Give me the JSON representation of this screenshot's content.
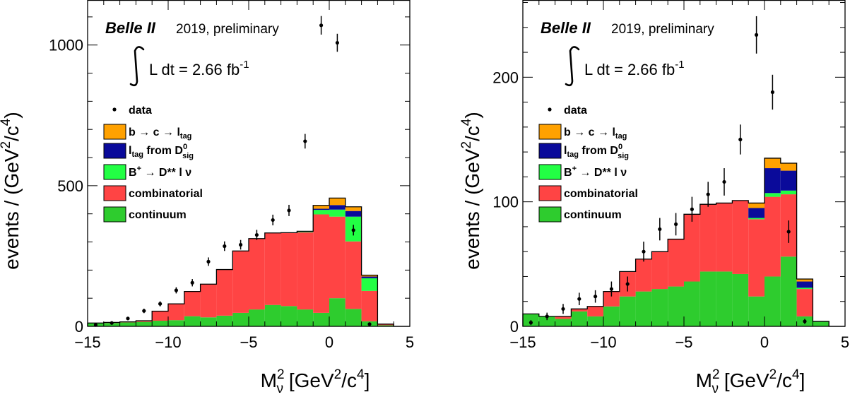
{
  "chart_data": [
    {
      "type": "bar",
      "stacked": true,
      "histtype": "step-filled",
      "x_edges": [
        -15,
        -14,
        -13,
        -12,
        -11,
        -10,
        -9,
        -8,
        -7,
        -6,
        -5,
        -4,
        -3,
        -2,
        -1,
        0,
        1,
        2,
        3,
        4,
        5
      ],
      "xlim": [
        -15,
        5
      ],
      "ylim": [
        0,
        1160
      ],
      "xlabel": {
        "main": "M",
        "sup": "2",
        "sub": "ν",
        "rest": " [GeV",
        "sup2": "2",
        "rest2": "/c",
        "sup3": "4",
        "rest3": "]"
      },
      "ylabel": {
        "main": "events / (GeV",
        "sup": "2",
        "mid": "/c",
        "sup2": "4",
        "end": ")"
      },
      "xticks": [
        -15,
        -10,
        -5,
        0,
        5
      ],
      "xtick_labels": [
        "−15",
        "−10",
        "−5",
        "0",
        "5"
      ],
      "yticks": [
        0,
        500,
        1000
      ],
      "ytick_labels": [
        "0",
        "500",
        "1000"
      ],
      "annotation": {
        "experiment": "Belle II",
        "note": "2019, preliminary",
        "lumi_text": "L dt = 2.66 fb",
        "lumi_sup": "-1"
      },
      "legend": {
        "data": "data",
        "b_c_l": [
          "b ",
          "→",
          " c ",
          "→",
          " l",
          "tag"
        ],
        "ltag": [
          "l",
          "tag",
          " from D",
          "0",
          "sig"
        ],
        "bplus": [
          "B",
          "+",
          " ",
          "→",
          " D** l ν"
        ],
        "combinatorial": "combinatorial",
        "continuum": "continuum"
      },
      "colors": {
        "continuum": "#2ecc2e",
        "combinatorial": "#ff4444",
        "bplus": "#22ff44",
        "ltag": "#0a0a9a",
        "bcl": "#ffa100",
        "outline": "#000000"
      },
      "series": [
        {
          "name": "continuum",
          "values": [
            12,
            12,
            14,
            16,
            20,
            22,
            36,
            32,
            38,
            48,
            60,
            76,
            72,
            60,
            48,
            100,
            62,
            18,
            4,
            0
          ]
        },
        {
          "name": "combinatorial",
          "values": [
            0,
            2,
            2,
            4,
            34,
            58,
            88,
            118,
            164,
            220,
            252,
            256,
            260,
            274,
            350,
            290,
            240,
            108,
            4,
            0
          ]
        },
        {
          "name": "B+ → D** l ν",
          "values": [
            0,
            0,
            0,
            0,
            0,
            0,
            0,
            0,
            0,
            0,
            0,
            0,
            1,
            2,
            16,
            25,
            88,
            45,
            0,
            0
          ]
        },
        {
          "name": "ltag from D0sig",
          "values": [
            0,
            0,
            0,
            0,
            0,
            0,
            0,
            0,
            0,
            0,
            0,
            0,
            0,
            2,
            4,
            16,
            20,
            6,
            0,
            0
          ]
        },
        {
          "name": "b → c → ltag",
          "values": [
            0,
            0,
            0,
            0,
            0,
            0,
            0,
            0,
            0,
            0,
            0,
            0,
            0,
            0,
            12,
            25,
            15,
            5,
            0,
            0
          ]
        }
      ],
      "data_points": {
        "x": [
          -14.5,
          -13.5,
          -12.5,
          -11.5,
          -10.5,
          -9.5,
          -8.5,
          -7.5,
          -6.5,
          -5.5,
          -4.5,
          -3.5,
          -2.5,
          -1.5,
          -0.5,
          0.5,
          1.5,
          2.5,
          3.5
        ],
        "y": [
          5,
          12,
          28,
          55,
          80,
          128,
          155,
          230,
          285,
          290,
          325,
          378,
          412,
          658,
          1070,
          1008,
          342,
          8,
          0
        ],
        "yerr": [
          3,
          4,
          6,
          8,
          9,
          11,
          13,
          15,
          17,
          17,
          18,
          19,
          20,
          26,
          33,
          32,
          19,
          3,
          0
        ]
      }
    },
    {
      "type": "bar",
      "stacked": true,
      "histtype": "step-filled",
      "x_edges": [
        -15,
        -14,
        -13,
        -12,
        -11,
        -10,
        -9,
        -8,
        -7,
        -6,
        -5,
        -4,
        -3,
        -2,
        -1,
        0,
        1,
        2,
        3,
        4,
        5
      ],
      "xlim": [
        -15,
        5
      ],
      "ylim": [
        0,
        262
      ],
      "xlabel": {
        "main": "M",
        "sup": "2",
        "sub": "ν",
        "rest": " [GeV",
        "sup2": "2",
        "rest2": "/c",
        "sup3": "4",
        "rest3": "]"
      },
      "ylabel": {
        "main": "events / (GeV",
        "sup": "2",
        "mid": "/c",
        "sup2": "4",
        "end": ")"
      },
      "xticks": [
        -15,
        -10,
        -5,
        0,
        5
      ],
      "xtick_labels": [
        "−15",
        "−10",
        "−5",
        "0",
        "5"
      ],
      "yticks": [
        0,
        100,
        200
      ],
      "ytick_labels": [
        "0",
        "100",
        "200"
      ],
      "annotation": {
        "experiment": "Belle II",
        "note": "2019, preliminary",
        "lumi_text": "L dt = 2.66 fb",
        "lumi_sup": "-1"
      },
      "legend": {
        "data": "data",
        "b_c_l": [
          "b ",
          "→",
          " c ",
          "→",
          " l",
          "tag"
        ],
        "ltag": [
          "l",
          "tag",
          " from D",
          "0",
          "sig"
        ],
        "bplus": [
          "B",
          "+",
          " ",
          "→",
          " D** l ν"
        ],
        "combinatorial": "combinatorial",
        "continuum": "continuum"
      },
      "colors": {
        "continuum": "#2ecc2e",
        "combinatorial": "#ff4444",
        "bplus": "#22ff44",
        "ltag": "#0a0a9a",
        "bcl": "#ffa100",
        "outline": "#000000"
      },
      "series": [
        {
          "name": "continuum",
          "values": [
            10,
            8,
            6,
            12,
            8,
            16,
            24,
            28,
            30,
            32,
            36,
            44,
            44,
            42,
            24,
            40,
            56,
            8,
            4,
            0
          ]
        },
        {
          "name": "combinatorial",
          "values": [
            0,
            0,
            2,
            2,
            8,
            12,
            20,
            26,
            30,
            38,
            54,
            54,
            55,
            59,
            62,
            64,
            50,
            22,
            0,
            0
          ]
        },
        {
          "name": "B+ → D** l ν",
          "values": [
            0,
            0,
            0,
            0,
            0,
            0,
            0,
            0,
            0,
            0,
            0,
            0,
            0,
            0,
            1,
            3,
            3,
            1,
            0,
            0
          ]
        },
        {
          "name": "ltag from D0sig",
          "values": [
            0,
            0,
            0,
            0,
            0,
            0,
            0,
            0,
            0,
            0,
            0,
            0,
            0,
            0,
            8,
            20,
            16,
            5,
            0,
            0
          ]
        },
        {
          "name": "b → c → ltag",
          "values": [
            0,
            0,
            0,
            0,
            0,
            0,
            0,
            0,
            0,
            0,
            0,
            0,
            0,
            0,
            4,
            8,
            6,
            2,
            0,
            0
          ]
        }
      ],
      "data_points": {
        "x": [
          -14.5,
          -13.5,
          -12.5,
          -11.5,
          -10.5,
          -9.5,
          -8.5,
          -7.5,
          -6.5,
          -5.5,
          -4.5,
          -3.5,
          -2.5,
          -1.5,
          -0.5,
          0.5,
          1.5,
          2.5,
          3.5
        ],
        "y": [
          3,
          8,
          14,
          22,
          24,
          30,
          34,
          60,
          78,
          82,
          94,
          106,
          116,
          150,
          234,
          188,
          76,
          4,
          0
        ],
        "yerr": [
          2,
          3,
          4,
          5,
          5,
          6,
          6,
          8,
          9,
          9,
          10,
          10,
          11,
          12,
          15,
          14,
          9,
          2,
          0
        ]
      }
    }
  ]
}
